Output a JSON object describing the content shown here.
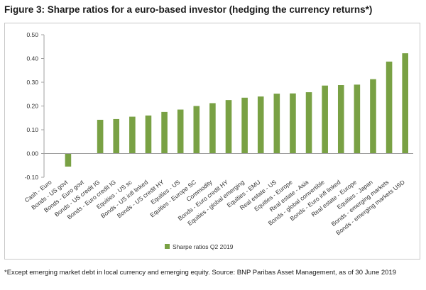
{
  "title": "Figure 3: Sharpe ratios for a euro-based investor (hedging the currency returns*)",
  "footnote": "*Except emerging market debt in local currency and emerging equity. Source: BNP Paribas Asset Management, as of 30 June 2019",
  "colors": {
    "bar": "#79a144",
    "axis": "#a0a0a0",
    "text": "#333333"
  },
  "chart_data": {
    "type": "bar",
    "title": "",
    "xlabel": "",
    "ylabel": "",
    "ylim": [
      -0.1,
      0.5
    ],
    "yticks": [
      "0.50",
      "0.40",
      "0.30",
      "0.20",
      "0.10",
      "0.00",
      "-0.10"
    ],
    "grid": false,
    "legend": "bottom-center",
    "categories": [
      "Cash - Euro",
      "Bonds - US govt",
      "Bonds - Euro govt",
      "Bonds - US credit IG",
      "Bonds - Euro credit IG",
      "Equities - US sc",
      "Bonds - US infl linked",
      "Bonds - US credit HY",
      "Equities - US",
      "Equities - Europe SC",
      "Commodity",
      "Bonds - Euro credit HY",
      "Equities - global emerging",
      "Equities - EMU",
      "Real estate - US",
      "Equities - Europe",
      "Real estate - Asia",
      "Bonds - global convertible",
      "Bonds - Euro infl linked",
      "Real estate - Europe",
      "Equities - Japan",
      "Bonds - emerging markets",
      "Bonds - emerging markets USD"
    ],
    "series": [
      {
        "name": "Sharpe ratios Q2 2019",
        "values": [
          0.0,
          -0.055,
          0.0,
          0.142,
          0.145,
          0.155,
          0.16,
          0.175,
          0.185,
          0.2,
          0.212,
          0.225,
          0.235,
          0.24,
          0.252,
          0.253,
          0.258,
          0.286,
          0.288,
          0.29,
          0.313,
          0.387,
          0.422
        ]
      }
    ]
  }
}
